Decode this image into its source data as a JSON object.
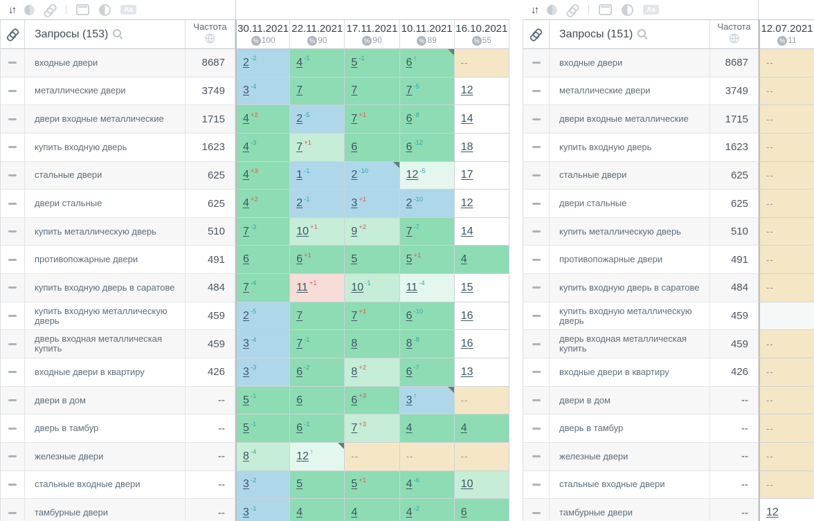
{
  "colors": {
    "blue": "#aed7ea",
    "green": "#8edcb3",
    "green_light": "#c6edd7",
    "green_pale": "#e4f7ee",
    "pink": "#f8dcd8",
    "tan": "#f5e7c6",
    "white": "#ffffff",
    "delta_up": "#2fa8a3",
    "delta_down": "#e0584e",
    "corner_marker": "#647f78"
  },
  "toolbar": {
    "sort_icon": "↓↑",
    "moon_icon": "moon-toggle",
    "link_icon": "link-toggle",
    "window_icon": "snippet-toggle",
    "contrast_icon": "contrast-toggle",
    "aa_label": "Aa"
  },
  "left_panel": {
    "queries_label": "Запросы (153)",
    "frequency_label": "Частота",
    "columns": [
      {
        "date": "30.11.2021",
        "coverage": "100"
      },
      {
        "date": "22.11.2021",
        "coverage": "90"
      },
      {
        "date": "17.11.2021",
        "coverage": "90"
      },
      {
        "date": "10.11.2021",
        "coverage": "89"
      },
      {
        "date": "16.10.2021",
        "coverage": "55"
      }
    ],
    "rows": [
      {
        "keyword": "входные двери",
        "frequency": "8687",
        "cells": [
          {
            "pos": "2",
            "delta": "-2",
            "bg": "blue"
          },
          {
            "pos": "4",
            "delta": "-1",
            "bg": "green"
          },
          {
            "pos": "5",
            "delta": "-1",
            "bg": "green"
          },
          {
            "pos": "6",
            "delta": "new",
            "bg": "green",
            "corner": true
          },
          {
            "pos": "--",
            "bg": "tan"
          }
        ]
      },
      {
        "keyword": "металлические двери",
        "frequency": "3749",
        "cells": [
          {
            "pos": "3",
            "delta": "-4",
            "bg": "blue"
          },
          {
            "pos": "7",
            "bg": "green"
          },
          {
            "pos": "7",
            "bg": "green"
          },
          {
            "pos": "7",
            "delta": "-5",
            "bg": "green"
          },
          {
            "pos": "12",
            "bg": "white"
          }
        ]
      },
      {
        "keyword": "двери входные металлические",
        "frequency": "1715",
        "cells": [
          {
            "pos": "4",
            "delta": "+2",
            "bg": "green"
          },
          {
            "pos": "2",
            "delta": "-5",
            "bg": "blue"
          },
          {
            "pos": "7",
            "delta": "+1",
            "bg": "green"
          },
          {
            "pos": "6",
            "delta": "-8",
            "bg": "green"
          },
          {
            "pos": "14",
            "bg": "white"
          }
        ]
      },
      {
        "keyword": "купить входную дверь",
        "frequency": "1623",
        "cells": [
          {
            "pos": "4",
            "delta": "-3",
            "bg": "green"
          },
          {
            "pos": "7",
            "delta": "+1",
            "bg": "green_light"
          },
          {
            "pos": "6",
            "bg": "green"
          },
          {
            "pos": "6",
            "delta": "-12",
            "bg": "green"
          },
          {
            "pos": "18",
            "bg": "white"
          }
        ]
      },
      {
        "keyword": "стальные двери",
        "frequency": "625",
        "cells": [
          {
            "pos": "4",
            "delta": "+3",
            "bg": "green"
          },
          {
            "pos": "1",
            "delta": "-1",
            "bg": "blue"
          },
          {
            "pos": "2",
            "delta": "-10",
            "bg": "blue",
            "corner": true
          },
          {
            "pos": "12",
            "delta": "-5",
            "bg": "green_pale"
          },
          {
            "pos": "17",
            "bg": "white"
          }
        ]
      },
      {
        "keyword": "двери стальные",
        "frequency": "625",
        "cells": [
          {
            "pos": "4",
            "delta": "+2",
            "bg": "green"
          },
          {
            "pos": "2",
            "delta": "-1",
            "bg": "blue"
          },
          {
            "pos": "3",
            "delta": "+1",
            "bg": "blue"
          },
          {
            "pos": "2",
            "delta": "-10",
            "bg": "blue"
          },
          {
            "pos": "12",
            "bg": "white"
          }
        ]
      },
      {
        "keyword": "купить металлическую дверь",
        "frequency": "510",
        "cells": [
          {
            "pos": "7",
            "delta": "-3",
            "bg": "green"
          },
          {
            "pos": "10",
            "delta": "+1",
            "bg": "green_light"
          },
          {
            "pos": "9",
            "delta": "+2",
            "bg": "green_light"
          },
          {
            "pos": "7",
            "delta": "-7",
            "bg": "green"
          },
          {
            "pos": "14",
            "bg": "white"
          }
        ]
      },
      {
        "keyword": "противопожарные двери",
        "frequency": "491",
        "cells": [
          {
            "pos": "6",
            "bg": "green"
          },
          {
            "pos": "6",
            "delta": "+1",
            "bg": "green"
          },
          {
            "pos": "5",
            "bg": "green"
          },
          {
            "pos": "5",
            "delta": "+1",
            "bg": "green"
          },
          {
            "pos": "4",
            "bg": "green"
          }
        ]
      },
      {
        "keyword": "купить входную дверь в саратове",
        "frequency": "484",
        "cells": [
          {
            "pos": "7",
            "delta": "-4",
            "bg": "green"
          },
          {
            "pos": "11",
            "delta": "+1",
            "bg": "pink"
          },
          {
            "pos": "10",
            "delta": "-1",
            "bg": "green_light"
          },
          {
            "pos": "11",
            "delta": "-4",
            "bg": "green_pale"
          },
          {
            "pos": "15",
            "bg": "white"
          }
        ]
      },
      {
        "keyword": "купить входную металлическую дверь",
        "frequency": "459",
        "cells": [
          {
            "pos": "2",
            "delta": "-5",
            "bg": "blue"
          },
          {
            "pos": "7",
            "bg": "green"
          },
          {
            "pos": "7",
            "delta": "+1",
            "bg": "green"
          },
          {
            "pos": "6",
            "delta": "-10",
            "bg": "green"
          },
          {
            "pos": "16",
            "bg": "white"
          }
        ]
      },
      {
        "keyword": "дверь входная металлическая купить",
        "frequency": "459",
        "cells": [
          {
            "pos": "3",
            "delta": "-4",
            "bg": "blue"
          },
          {
            "pos": "7",
            "delta": "-1",
            "bg": "green"
          },
          {
            "pos": "8",
            "bg": "green"
          },
          {
            "pos": "8",
            "delta": "-8",
            "bg": "green"
          },
          {
            "pos": "16",
            "bg": "white"
          }
        ]
      },
      {
        "keyword": "входные двери в квартиру",
        "frequency": "426",
        "cells": [
          {
            "pos": "3",
            "delta": "-3",
            "bg": "blue"
          },
          {
            "pos": "6",
            "delta": "-2",
            "bg": "green"
          },
          {
            "pos": "8",
            "delta": "+2",
            "bg": "green_light"
          },
          {
            "pos": "6",
            "delta": "-7",
            "bg": "green"
          },
          {
            "pos": "13",
            "bg": "white"
          }
        ]
      },
      {
        "keyword": "двери в дом",
        "frequency": "--",
        "cells": [
          {
            "pos": "5",
            "delta": "-1",
            "bg": "green"
          },
          {
            "pos": "6",
            "bg": "green"
          },
          {
            "pos": "6",
            "delta": "+3",
            "bg": "green"
          },
          {
            "pos": "3",
            "delta": "new",
            "bg": "blue",
            "corner": true
          },
          {
            "pos": "--",
            "bg": "tan"
          }
        ]
      },
      {
        "keyword": "дверь в тамбур",
        "frequency": "--",
        "cells": [
          {
            "pos": "5",
            "delta": "-1",
            "bg": "green"
          },
          {
            "pos": "6",
            "delta": "-1",
            "bg": "green"
          },
          {
            "pos": "7",
            "delta": "+3",
            "bg": "green_light"
          },
          {
            "pos": "4",
            "bg": "green"
          },
          {
            "pos": "4",
            "bg": "green"
          }
        ]
      },
      {
        "keyword": "железные двери",
        "frequency": "--",
        "cells": [
          {
            "pos": "8",
            "delta": "-4",
            "bg": "green_light"
          },
          {
            "pos": "12",
            "delta": "new",
            "bg": "green_pale",
            "corner": true
          },
          {
            "pos": "--",
            "bg": "tan"
          },
          {
            "pos": "--",
            "bg": "tan"
          },
          {
            "pos": "--",
            "bg": "tan"
          }
        ]
      },
      {
        "keyword": "стальные входные двери",
        "frequency": "--",
        "cells": [
          {
            "pos": "3",
            "delta": "-2",
            "bg": "blue"
          },
          {
            "pos": "5",
            "bg": "green"
          },
          {
            "pos": "5",
            "delta": "+1",
            "bg": "green"
          },
          {
            "pos": "4",
            "delta": "-6",
            "bg": "green"
          },
          {
            "pos": "10",
            "bg": "green_light"
          }
        ]
      },
      {
        "keyword": "тамбурные двери",
        "frequency": "--",
        "cells": [
          {
            "pos": "3",
            "delta": "-1",
            "bg": "blue"
          },
          {
            "pos": "4",
            "bg": "green"
          },
          {
            "pos": "4",
            "bg": "green"
          },
          {
            "pos": "4",
            "delta": "-2",
            "bg": "green"
          },
          {
            "pos": "6",
            "bg": "green"
          }
        ]
      }
    ]
  },
  "right_panel": {
    "queries_label": "Запросы (151)",
    "frequency_label": "Частота",
    "columns": [
      {
        "date": "12.07.2021",
        "coverage": "11"
      }
    ],
    "rows": [
      {
        "keyword": "входные двери",
        "frequency": "8687",
        "cells": [
          {
            "pos": "--",
            "bg": "tan"
          }
        ]
      },
      {
        "keyword": "металлические двери",
        "frequency": "3749",
        "cells": [
          {
            "pos": "--",
            "bg": "tan"
          }
        ]
      },
      {
        "keyword": "двери входные металлические",
        "frequency": "1715",
        "cells": [
          {
            "pos": "--",
            "bg": "tan"
          }
        ]
      },
      {
        "keyword": "купить входную дверь",
        "frequency": "1623",
        "cells": [
          {
            "pos": "--",
            "bg": "tan"
          }
        ]
      },
      {
        "keyword": "стальные двери",
        "frequency": "625",
        "cells": [
          {
            "pos": "--",
            "bg": "tan"
          }
        ]
      },
      {
        "keyword": "двери стальные",
        "frequency": "625",
        "cells": [
          {
            "pos": "--",
            "bg": "tan"
          }
        ]
      },
      {
        "keyword": "купить металлическую дверь",
        "frequency": "510",
        "cells": [
          {
            "pos": "--",
            "bg": "tan"
          }
        ]
      },
      {
        "keyword": "противопожарные двери",
        "frequency": "491",
        "cells": [
          {
            "pos": "--",
            "bg": "tan"
          }
        ]
      },
      {
        "keyword": "купить входную дверь в саратове",
        "frequency": "484",
        "cells": [
          {
            "pos": "--",
            "bg": "tan"
          }
        ]
      },
      {
        "keyword": "купить входную металлическую дверь",
        "frequency": "459",
        "cells": [
          {
            "pos": "",
            "bg": "none"
          }
        ]
      },
      {
        "keyword": "дверь входная металлическая купить",
        "frequency": "459",
        "cells": [
          {
            "pos": "--",
            "bg": "tan"
          }
        ]
      },
      {
        "keyword": "входные двери в квартиру",
        "frequency": "426",
        "cells": [
          {
            "pos": "--",
            "bg": "tan"
          }
        ]
      },
      {
        "keyword": "двери в дом",
        "frequency": "--",
        "cells": [
          {
            "pos": "--",
            "bg": "tan"
          }
        ]
      },
      {
        "keyword": "дверь в тамбур",
        "frequency": "--",
        "cells": [
          {
            "pos": "--",
            "bg": "tan"
          }
        ]
      },
      {
        "keyword": "железные двери",
        "frequency": "--",
        "cells": [
          {
            "pos": "--",
            "bg": "tan"
          }
        ]
      },
      {
        "keyword": "стальные входные двери",
        "frequency": "--",
        "cells": [
          {
            "pos": "--",
            "bg": "tan"
          }
        ]
      },
      {
        "keyword": "тамбурные двери",
        "frequency": "--",
        "cells": [
          {
            "pos": "12",
            "bg": "white"
          }
        ]
      }
    ]
  }
}
